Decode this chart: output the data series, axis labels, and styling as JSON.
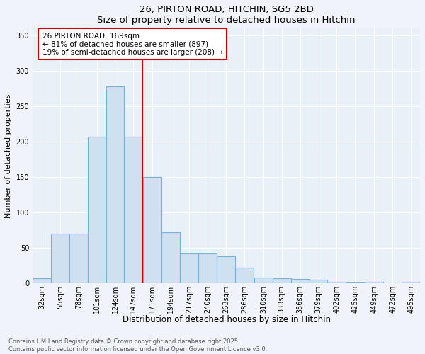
{
  "title1": "26, PIRTON ROAD, HITCHIN, SG5 2BD",
  "title2": "Size of property relative to detached houses in Hitchin",
  "xlabel": "Distribution of detached houses by size in Hitchin",
  "ylabel": "Number of detached properties",
  "bar_color": "#cfe0f0",
  "bar_edge_color": "#7ab0d4",
  "bg_color": "#e8f0f8",
  "fig_color": "#f0f4fa",
  "grid_color": "#ffffff",
  "vline_color": "#cc0000",
  "annotation_text": "26 PIRTON ROAD: 169sqm\n← 81% of detached houses are smaller (897)\n19% of semi-detached houses are larger (208) →",
  "annotation_box_color": "#ffffff",
  "annotation_box_edge": "#cc0000",
  "sqm_vals": [
    32,
    55,
    78,
    101,
    124,
    147,
    171,
    194,
    217,
    240,
    263,
    286,
    310,
    333,
    356,
    379,
    402,
    425,
    449,
    472,
    495
  ],
  "values": [
    7,
    70,
    70,
    207,
    278,
    207,
    150,
    72,
    42,
    42,
    38,
    22,
    8,
    7,
    6,
    5,
    2,
    1,
    2,
    0,
    2
  ],
  "categories": [
    "32sqm",
    "55sqm",
    "78sqm",
    "101sqm",
    "124sqm",
    "147sqm",
    "171sqm",
    "194sqm",
    "217sqm",
    "240sqm",
    "263sqm",
    "286sqm",
    "310sqm",
    "333sqm",
    "356sqm",
    "379sqm",
    "402sqm",
    "425sqm",
    "449sqm",
    "472sqm",
    "495sqm"
  ],
  "ylim": [
    0,
    360
  ],
  "yticks": [
    0,
    50,
    100,
    150,
    200,
    250,
    300,
    350
  ],
  "footer1": "Contains HM Land Registry data © Crown copyright and database right 2025.",
  "footer2": "Contains public sector information licensed under the Open Government Licence v3.0."
}
